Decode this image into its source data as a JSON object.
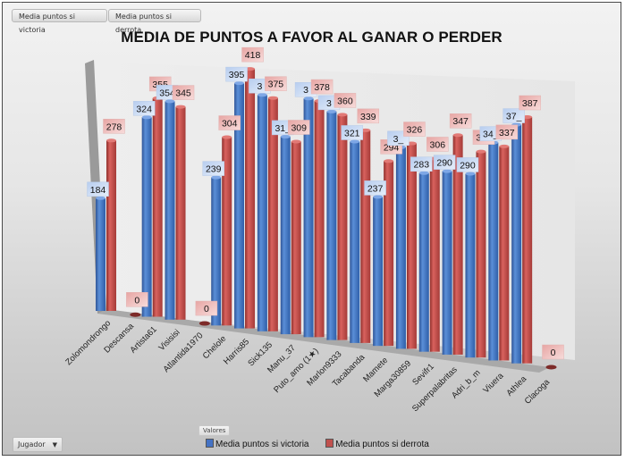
{
  "field_buttons": [
    "Media puntos si victoria",
    "Media puntos si derrota"
  ],
  "axis_field_button": {
    "label": "Jugador",
    "icon": "dropdown-arrow-icon"
  },
  "values_label": "Valores",
  "colors": {
    "victoria": "#4472c4",
    "derrota": "#c0504d"
  },
  "chart_data": {
    "type": "bar",
    "subtype": "3d-cylinder-clustered",
    "title": "MEDIA DE PUNTOS A FAVOR AL GANAR O PERDER",
    "xlabel": "",
    "ylabel": "",
    "ylim": [
      0,
      430
    ],
    "grid": false,
    "legend_position": "bottom",
    "categories": [
      "Zolomondrongo",
      "Descansa",
      "Artista61",
      "Visisisi",
      "Atlantida1970",
      "Chelole",
      "Harris85",
      "Sick135",
      "Manu_37",
      "Puto_amo (1★)",
      "Marlon9333",
      "Tacabanda",
      "Mamete",
      "Marga30859",
      "Sevifr1",
      "Superpalabritas",
      "Adri_b_m",
      "Viuera",
      "Athlea",
      "Clacoga"
    ],
    "series": [
      {
        "name": "Media puntos si victoria",
        "values": [
          184,
          null,
          324,
          354,
          null,
          239,
          395,
          380,
          317,
          382,
          365,
          321,
          237,
          320,
          283,
          290,
          290,
          343,
          375,
          null
        ]
      },
      {
        "name": "Media puntos si derrota",
        "values": [
          278,
          0,
          355,
          345,
          0,
          304,
          418,
          375,
          309,
          378,
          360,
          339,
          294,
          326,
          306,
          347,
          325,
          337,
          387,
          0
        ]
      }
    ],
    "data_labels_visible": {
      "Media puntos si victoria": [
        "184",
        "",
        "324",
        "354",
        "",
        "239",
        "395",
        "3",
        "31_",
        "3",
        "3",
        "321",
        "237",
        "3_",
        "283",
        "290",
        "290",
        "34_",
        "37_",
        ""
      ],
      "Media puntos si derrota": [
        "278",
        "0",
        "355",
        "345",
        "0",
        "304",
        "418",
        "375",
        "309",
        "378",
        "360",
        "339",
        "294",
        "326",
        "306",
        "347",
        "325",
        "337",
        "387",
        "0"
      ]
    }
  }
}
